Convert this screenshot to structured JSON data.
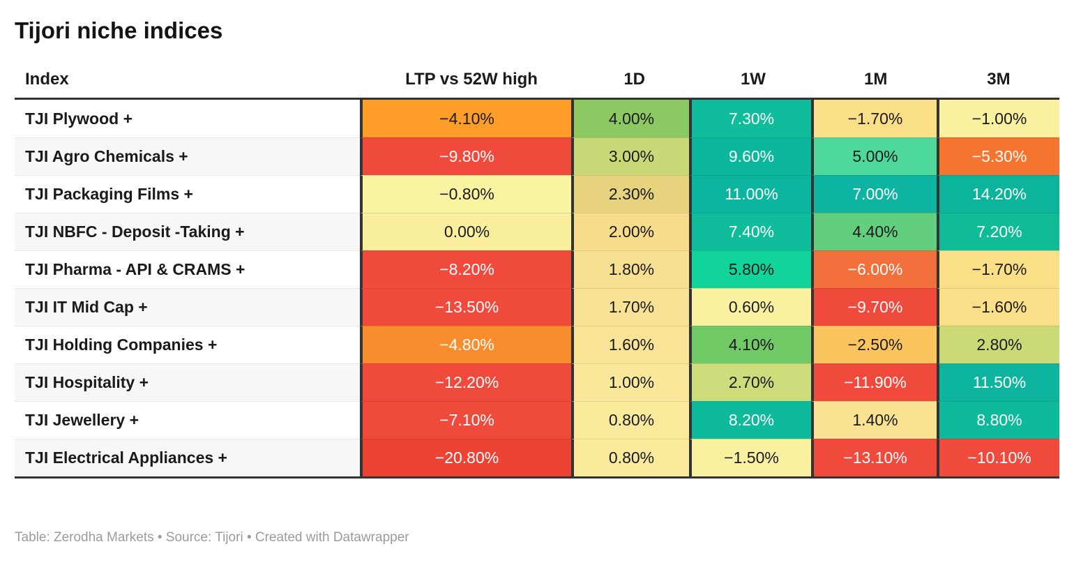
{
  "title": "Tijori niche indices",
  "footer": "Table: Zerodha Markets • Source: Tijori • Created with Datawrapper",
  "table": {
    "header": {
      "index": "Index",
      "cols": [
        "LTP vs 52W high",
        "1D",
        "1W",
        "1M",
        "3M"
      ]
    },
    "rows": [
      {
        "label": "TJI Plywood +",
        "cells": [
          {
            "text": "−4.10%",
            "bg": "#FE9D28",
            "fg": "#1a1a1a"
          },
          {
            "text": "4.00%",
            "bg": "#8DC963",
            "fg": "#1a1a1a"
          },
          {
            "text": "7.30%",
            "bg": "#0FBC9B",
            "fg": "#ffffff"
          },
          {
            "text": "−1.70%",
            "bg": "#FBDF87",
            "fg": "#1a1a1a"
          },
          {
            "text": "−1.00%",
            "bg": "#F9F0A0",
            "fg": "#1a1a1a"
          }
        ]
      },
      {
        "label": "TJI Agro Chemicals +",
        "cells": [
          {
            "text": "−9.80%",
            "bg": "#EF4A3B",
            "fg": "#ffffff"
          },
          {
            "text": "3.00%",
            "bg": "#C9D977",
            "fg": "#1a1a1a"
          },
          {
            "text": "9.60%",
            "bg": "#0DB79D",
            "fg": "#ffffff"
          },
          {
            "text": "5.00%",
            "bg": "#4FD89B",
            "fg": "#1a1a1a"
          },
          {
            "text": "−5.30%",
            "bg": "#F4752F",
            "fg": "#ffffff"
          }
        ]
      },
      {
        "label": "TJI Packaging Films +",
        "cells": [
          {
            "text": "−0.80%",
            "bg": "#FAF3A2",
            "fg": "#1a1a1a"
          },
          {
            "text": "2.30%",
            "bg": "#E7D37E",
            "fg": "#1a1a1a"
          },
          {
            "text": "11.00%",
            "bg": "#0CB5A0",
            "fg": "#ffffff"
          },
          {
            "text": "7.00%",
            "bg": "#0DB4A1",
            "fg": "#ffffff"
          },
          {
            "text": "14.20%",
            "bg": "#0CB49B",
            "fg": "#ffffff"
          }
        ]
      },
      {
        "label": "TJI NBFC - Deposit -Taking +",
        "cells": [
          {
            "text": "0.00%",
            "bg": "#F9EF9E",
            "fg": "#1a1a1a"
          },
          {
            "text": "2.00%",
            "bg": "#F6DC8B",
            "fg": "#1a1a1a"
          },
          {
            "text": "7.40%",
            "bg": "#0FBC9B",
            "fg": "#ffffff"
          },
          {
            "text": "4.40%",
            "bg": "#63CE7E",
            "fg": "#1a1a1a"
          },
          {
            "text": "7.20%",
            "bg": "#0FBC97",
            "fg": "#ffffff"
          }
        ]
      },
      {
        "label": "TJI Pharma - API & CRAMS +",
        "cells": [
          {
            "text": "−8.20%",
            "bg": "#EF4A3B",
            "fg": "#ffffff"
          },
          {
            "text": "1.80%",
            "bg": "#F8E093",
            "fg": "#1a1a1a"
          },
          {
            "text": "5.80%",
            "bg": "#10D49A",
            "fg": "#1a1a1a"
          },
          {
            "text": "−6.00%",
            "bg": "#F2703C",
            "fg": "#ffffff"
          },
          {
            "text": "−1.70%",
            "bg": "#FBDF87",
            "fg": "#1a1a1a"
          }
        ]
      },
      {
        "label": "TJI IT Mid Cap +",
        "cells": [
          {
            "text": "−13.50%",
            "bg": "#EF4A3B",
            "fg": "#ffffff"
          },
          {
            "text": "1.70%",
            "bg": "#F8E295",
            "fg": "#1a1a1a"
          },
          {
            "text": "0.60%",
            "bg": "#F9F0A0",
            "fg": "#1a1a1a"
          },
          {
            "text": "−9.70%",
            "bg": "#EF4A3B",
            "fg": "#ffffff"
          },
          {
            "text": "−1.60%",
            "bg": "#FBDF88",
            "fg": "#1a1a1a"
          }
        ]
      },
      {
        "label": "TJI Holding Companies +",
        "cells": [
          {
            "text": "−4.80%",
            "bg": "#F78D2D",
            "fg": "#ffffff"
          },
          {
            "text": "1.60%",
            "bg": "#F8E396",
            "fg": "#1a1a1a"
          },
          {
            "text": "4.10%",
            "bg": "#72CA67",
            "fg": "#1a1a1a"
          },
          {
            "text": "−2.50%",
            "bg": "#FAC55E",
            "fg": "#1a1a1a"
          },
          {
            "text": "2.80%",
            "bg": "#CBDA76",
            "fg": "#1a1a1a"
          }
        ]
      },
      {
        "label": "TJI Hospitality +",
        "cells": [
          {
            "text": "−12.20%",
            "bg": "#EF4A3B",
            "fg": "#ffffff"
          },
          {
            "text": "1.00%",
            "bg": "#F9E89A",
            "fg": "#1a1a1a"
          },
          {
            "text": "2.70%",
            "bg": "#CFDC7B",
            "fg": "#1a1a1a"
          },
          {
            "text": "−11.90%",
            "bg": "#EF4A3B",
            "fg": "#ffffff"
          },
          {
            "text": "11.50%",
            "bg": "#0DB59E",
            "fg": "#ffffff"
          }
        ]
      },
      {
        "label": "TJI Jewellery +",
        "cells": [
          {
            "text": "−7.10%",
            "bg": "#EF4A3B",
            "fg": "#ffffff"
          },
          {
            "text": "0.80%",
            "bg": "#F9EA9C",
            "fg": "#1a1a1a"
          },
          {
            "text": "8.20%",
            "bg": "#0EBA9C",
            "fg": "#ffffff"
          },
          {
            "text": "1.40%",
            "bg": "#F9E292",
            "fg": "#1a1a1a"
          },
          {
            "text": "8.80%",
            "bg": "#0EBA9C",
            "fg": "#ffffff"
          }
        ]
      },
      {
        "label": "TJI Electrical Appliances +",
        "cells": [
          {
            "text": "−20.80%",
            "bg": "#ED4335",
            "fg": "#ffffff"
          },
          {
            "text": "0.80%",
            "bg": "#F9EA9C",
            "fg": "#1a1a1a"
          },
          {
            "text": "−1.50%",
            "bg": "#F9F0A0",
            "fg": "#1a1a1a"
          },
          {
            "text": "−13.10%",
            "bg": "#EF4A3B",
            "fg": "#ffffff"
          },
          {
            "text": "−10.10%",
            "bg": "#EF4A3B",
            "fg": "#ffffff"
          }
        ]
      }
    ]
  },
  "colors": {
    "border_dark": "#333333",
    "row_stripe": "#f7f7f7",
    "footer_text": "#9b9b9b",
    "heat_red": "#EF4A3B",
    "heat_orange": "#F78D2D",
    "heat_amber": "#FAC55E",
    "heat_pale_yellow": "#F9F0A0",
    "heat_yellow_green": "#C9D977",
    "heat_green": "#8DC963",
    "heat_mint": "#4FD89B",
    "heat_teal": "#0DB59E"
  },
  "chart_data": {
    "type": "table",
    "title": "Tijori niche indices",
    "row_header": "Index",
    "columns": [
      "LTP vs 52W high",
      "1D",
      "1W",
      "1M",
      "3M"
    ],
    "rows": [
      "TJI Plywood +",
      "TJI Agro Chemicals +",
      "TJI Packaging Films +",
      "TJI NBFC - Deposit -Taking +",
      "TJI Pharma - API & CRAMS +",
      "TJI IT Mid Cap +",
      "TJI Holding Companies +",
      "TJI Hospitality +",
      "TJI Jewellery +",
      "TJI Electrical Appliances +"
    ],
    "values_percent": [
      [
        -4.1,
        4.0,
        7.3,
        -1.7,
        -1.0
      ],
      [
        -9.8,
        3.0,
        9.6,
        5.0,
        -5.3
      ],
      [
        -0.8,
        2.3,
        11.0,
        7.0,
        14.2
      ],
      [
        0.0,
        2.0,
        7.4,
        4.4,
        7.2
      ],
      [
        -8.2,
        1.8,
        5.8,
        -6.0,
        -1.7
      ],
      [
        -13.5,
        1.7,
        0.6,
        -9.7,
        -1.6
      ],
      [
        -4.8,
        1.6,
        4.1,
        -2.5,
        2.8
      ],
      [
        -12.2,
        1.0,
        2.7,
        -11.9,
        11.5
      ],
      [
        -7.1,
        0.8,
        8.2,
        1.4,
        8.8
      ],
      [
        -20.8,
        0.8,
        -1.5,
        -13.1,
        -10.1
      ]
    ],
    "color_scale": "heatmap red (negative) → yellow (near zero) → green/teal (positive)",
    "note": "Table: Zerodha Markets • Source: Tijori • Created with Datawrapper"
  }
}
